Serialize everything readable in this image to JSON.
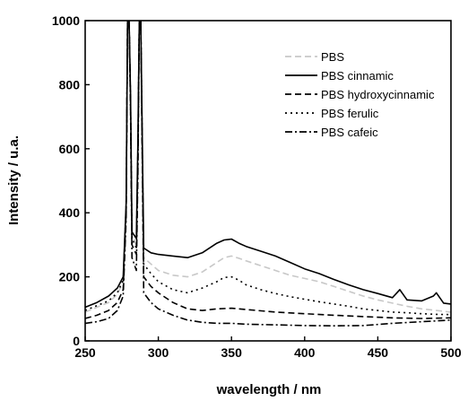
{
  "chart_data": {
    "type": "line",
    "xlabel": "wavelength / nm",
    "ylabel": "Intensity / u.a.",
    "xlim": [
      250,
      500
    ],
    "ylim": [
      0,
      1000
    ],
    "x_ticks": [
      250,
      300,
      350,
      400,
      450,
      500
    ],
    "y_ticks": [
      0,
      200,
      400,
      600,
      800,
      1000
    ],
    "grid": false,
    "legend_position": "top-right",
    "series": [
      {
        "name": "PBS",
        "color": "#c8c8c8",
        "dash": "dashed",
        "x": [
          250,
          258,
          266,
          272,
          276,
          278,
          279,
          280,
          281,
          282,
          285,
          286,
          287,
          288,
          290,
          295,
          300,
          310,
          320,
          330,
          340,
          345,
          350,
          355,
          360,
          370,
          380,
          390,
          400,
          410,
          420,
          430,
          440,
          450,
          460,
          470,
          480,
          490,
          500
        ],
        "y": [
          90,
          105,
          120,
          145,
          185,
          420,
          1000,
          1000,
          760,
          330,
          300,
          600,
          1000,
          1000,
          260,
          240,
          220,
          205,
          200,
          215,
          245,
          260,
          265,
          258,
          250,
          235,
          220,
          205,
          195,
          185,
          170,
          155,
          140,
          128,
          118,
          108,
          100,
          95,
          90
        ]
      },
      {
        "name": "PBS cinnamic",
        "color": "#000000",
        "dash": "solid",
        "x": [
          250,
          258,
          266,
          272,
          276,
          278,
          279,
          280,
          281,
          282,
          285,
          286,
          287,
          288,
          290,
          295,
          300,
          310,
          320,
          330,
          340,
          345,
          350,
          355,
          360,
          370,
          380,
          390,
          400,
          410,
          420,
          430,
          440,
          450,
          460,
          465,
          470,
          480,
          488,
          490,
          495,
          500
        ],
        "y": [
          105,
          120,
          140,
          165,
          200,
          430,
          1000,
          1000,
          770,
          340,
          320,
          620,
          1000,
          1000,
          290,
          275,
          270,
          265,
          260,
          275,
          305,
          315,
          318,
          305,
          295,
          280,
          265,
          245,
          225,
          210,
          192,
          175,
          160,
          148,
          135,
          160,
          128,
          125,
          140,
          150,
          118,
          115
        ]
      },
      {
        "name": "PBS hydroxycinnamic",
        "color": "#000000",
        "dash": "dashed",
        "x": [
          250,
          258,
          266,
          272,
          276,
          278,
          279,
          280,
          281,
          282,
          285,
          286,
          287,
          288,
          290,
          295,
          300,
          310,
          320,
          330,
          340,
          350,
          360,
          380,
          400,
          420,
          440,
          460,
          480,
          500
        ],
        "y": [
          70,
          80,
          95,
          120,
          160,
          400,
          1000,
          1000,
          740,
          300,
          270,
          560,
          1000,
          1000,
          200,
          170,
          150,
          120,
          100,
          95,
          100,
          102,
          98,
          90,
          85,
          80,
          76,
          72,
          70,
          72
        ]
      },
      {
        "name": "PBS ferulic",
        "color": "#000000",
        "dash": "dotted",
        "x": [
          250,
          258,
          266,
          272,
          276,
          278,
          279,
          280,
          281,
          282,
          285,
          286,
          287,
          288,
          290,
          295,
          300,
          310,
          320,
          330,
          340,
          345,
          350,
          355,
          360,
          370,
          380,
          390,
          400,
          410,
          420,
          430,
          440,
          450,
          460,
          470,
          480,
          490,
          500
        ],
        "y": [
          95,
          110,
          125,
          150,
          190,
          420,
          1000,
          1000,
          750,
          320,
          290,
          590,
          1000,
          1000,
          240,
          210,
          185,
          160,
          150,
          165,
          185,
          198,
          200,
          190,
          175,
          160,
          148,
          138,
          130,
          122,
          115,
          108,
          100,
          95,
          90,
          88,
          85,
          83,
          82
        ]
      },
      {
        "name": "PBS cafeic",
        "color": "#000000",
        "dash": "dashdot",
        "x": [
          250,
          258,
          266,
          272,
          276,
          278,
          279,
          280,
          281,
          282,
          285,
          286,
          287,
          288,
          290,
          295,
          300,
          310,
          320,
          330,
          340,
          350,
          360,
          380,
          400,
          420,
          440,
          460,
          480,
          500
        ],
        "y": [
          55,
          60,
          70,
          95,
          140,
          380,
          1000,
          1000,
          720,
          260,
          220,
          520,
          1000,
          1000,
          150,
          120,
          100,
          80,
          65,
          58,
          55,
          55,
          52,
          50,
          48,
          47,
          48,
          55,
          60,
          65
        ]
      }
    ]
  }
}
